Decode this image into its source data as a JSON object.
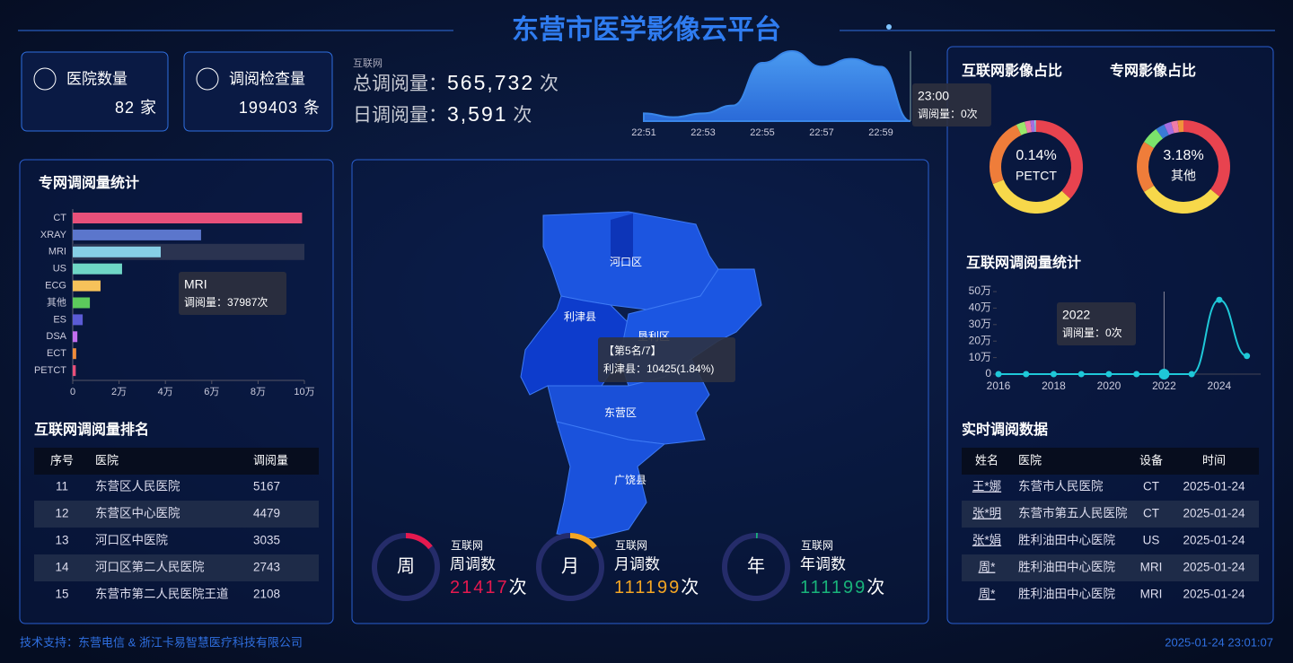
{
  "header": {
    "title": "东营市医学影像云平台"
  },
  "stats": [
    {
      "label": "医院数量",
      "value": "82",
      "unit": "家"
    },
    {
      "label": "调阅检查量",
      "value": "199403",
      "unit": "条"
    }
  ],
  "summary": {
    "source": "互联网",
    "total_label": "总调阅量：",
    "total": "565,732",
    "total_unit": "次",
    "daily_label": "日调阅量：",
    "daily": "3,591",
    "daily_unit": "次"
  },
  "chart_data": [
    {
      "type": "bar",
      "orientation": "horizontal",
      "title": "专网调阅量统计",
      "categories": [
        "CT",
        "XRAY",
        "MRI",
        "US",
        "ECG",
        "其他",
        "ES",
        "DSA",
        "ECT",
        "PETCT"
      ],
      "values": [
        99000,
        55400,
        37987,
        21300,
        12000,
        7400,
        4300,
        2000,
        1500,
        1300
      ],
      "colors": [
        "#e8507a",
        "#5b76cc",
        "#86cfe6",
        "#6fd6c6",
        "#f7c25a",
        "#5cc95c",
        "#5b5bd6",
        "#c36ef0",
        "#f08c3a",
        "#e8507a"
      ],
      "xlim": [
        0,
        100000
      ],
      "xticks": [
        0,
        {
          "value": 20000,
          "label": "2万"
        },
        {
          "value": 40000,
          "label": "4万"
        },
        {
          "value": 60000,
          "label": "6万"
        },
        {
          "value": 80000,
          "label": "8万"
        },
        {
          "value": 100000,
          "label": "10万"
        }
      ],
      "tooltip": {
        "title": "MRI",
        "text": "调阅量：37987次"
      }
    },
    {
      "type": "area",
      "categories": [
        "22:51",
        null,
        "22:53",
        null,
        "22:55",
        null,
        "22:57",
        null,
        "22:59",
        null
      ],
      "values": [
        2,
        1,
        2,
        4,
        15,
        18,
        14,
        16,
        14,
        0
      ],
      "color": "#3a86e8",
      "tooltip": {
        "title": "23:00",
        "text": "调阅量：0次"
      }
    },
    {
      "type": "pie",
      "title": "互联网影像占比",
      "categories": [
        null,
        null,
        null,
        null,
        null,
        null,
        null,
        "PETCT"
      ],
      "values": [
        37,
        32,
        24,
        3,
        2,
        1.36,
        0.5,
        0.14
      ],
      "value_labels": [
        null,
        null,
        null,
        null,
        null,
        null,
        null,
        "0.14%"
      ],
      "colors": [
        "#e8434f",
        "#f7d84a",
        "#ef7d3a",
        "#9be86b",
        "#f07ca8",
        "#a56de0",
        "#7fd3e8",
        "#ee5f8a"
      ]
    },
    {
      "type": "pie",
      "title": "专网影像占比",
      "categories": [
        null,
        null,
        null,
        null,
        "其他",
        null,
        null,
        null
      ],
      "values": [
        36,
        30,
        18,
        6,
        3.18,
        2.5,
        2.3,
        2.02
      ],
      "value_labels": [
        null,
        null,
        null,
        null,
        "3.18%",
        null,
        null,
        null
      ],
      "colors": [
        "#e8434f",
        "#f7d84a",
        "#ef7d3a",
        "#7be36b",
        "#3a7bd5",
        "#a56de0",
        "#f07ca8",
        "#f0923a"
      ]
    },
    {
      "type": "line",
      "title": "互联网调阅量统计",
      "x": [
        2016,
        2017,
        2018,
        2019,
        2020,
        2021,
        2022,
        2023,
        2024,
        2025
      ],
      "values": [
        0,
        0,
        0,
        0,
        0,
        0,
        0,
        0,
        450000,
        110000
      ],
      "color": "#1fc8d8",
      "xlim": [
        2016,
        2025.5
      ],
      "xticks": [
        2016,
        2018,
        2020,
        2022,
        2024
      ],
      "ylim": [
        0,
        500000
      ],
      "yticks": [
        0,
        {
          "value": 100000,
          "label": "10万"
        },
        {
          "value": 200000,
          "label": "20万"
        },
        {
          "value": 300000,
          "label": "30万"
        },
        {
          "value": 400000,
          "label": "40万"
        },
        {
          "value": 500000,
          "label": "50万"
        }
      ],
      "tooltip": {
        "title": "2022",
        "text": "调阅量：0次"
      }
    }
  ],
  "ranking": {
    "title": "互联网调阅量排名",
    "columns": [
      "序号",
      "医院",
      "调阅量"
    ],
    "rows": [
      [
        "11",
        "东营区人民医院",
        "5167"
      ],
      [
        "12",
        "东营区中心医院",
        "4479"
      ],
      [
        "13",
        "河口区中医院",
        "3035"
      ],
      [
        "14",
        "河口区第二人民医院",
        "2743"
      ],
      [
        "15",
        "东营市第二人民医院王道",
        "2108"
      ]
    ]
  },
  "map": {
    "regions": [
      "河口区",
      "利津县",
      "垦利区",
      "东营区",
      "广饶县"
    ],
    "tooltip": {
      "rank": "【第5名/7】",
      "text": "利津县：10425(1.84%)"
    }
  },
  "counters": [
    {
      "char": "周",
      "source": "互联网",
      "label": "周调数",
      "value": "21417",
      "unit": "次",
      "color": "#e5194f"
    },
    {
      "char": "月",
      "source": "互联网",
      "label": "月调数",
      "value": "111199",
      "unit": "次",
      "color": "#f5a623"
    },
    {
      "char": "年",
      "source": "互联网",
      "label": "年调数",
      "value": "111199",
      "unit": "次",
      "color": "#19b37a"
    }
  ],
  "realtime": {
    "title": "实时调阅数据",
    "columns": [
      "姓名",
      "医院",
      "设备",
      "时间"
    ],
    "rows": [
      [
        "王*娜",
        "东营市人民医院",
        "CT",
        "2025-01-24"
      ],
      [
        "张*明",
        "东营市第五人民医院",
        "CT",
        "2025-01-24"
      ],
      [
        "张*娟",
        "胜利油田中心医院",
        "US",
        "2025-01-24"
      ],
      [
        "周*",
        "胜利油田中心医院",
        "MRI",
        "2025-01-24"
      ],
      [
        "周*",
        "胜利油田中心医院",
        "MRI",
        "2025-01-24"
      ]
    ]
  },
  "footer": {
    "support": "技术支持：东营电信 & 浙江卡易智慧医疗科技有限公司",
    "time": "2025-01-24 23:01:07"
  }
}
